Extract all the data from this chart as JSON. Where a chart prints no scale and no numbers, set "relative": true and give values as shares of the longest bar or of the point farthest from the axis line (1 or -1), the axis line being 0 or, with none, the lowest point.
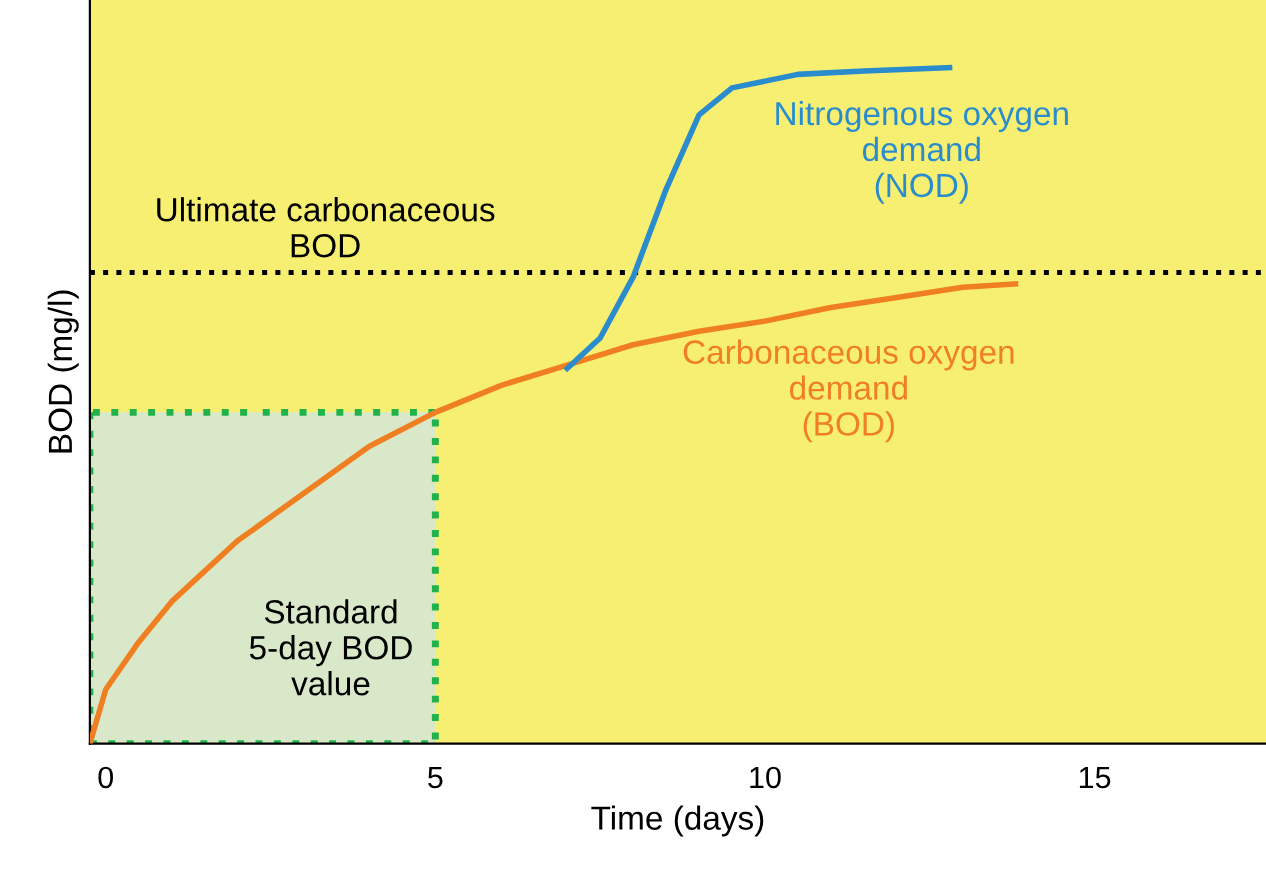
{
  "chart_data": {
    "type": "line",
    "relative": true,
    "xlabel": "Time (days)",
    "ylabel": "BOD (mg/l)",
    "xlim": [
      -0.24,
      17.6
    ],
    "xticks": [
      0,
      5,
      10,
      15
    ],
    "grid": false,
    "legend": false,
    "series": [
      {
        "type": "area",
        "color": "#d9e8c8",
        "line_style": "dotted",
        "x": [
          -0.24,
          5
        ],
        "values": [
          0.49,
          0.49
        ]
      },
      {
        "name": "Carbonaceous oxygen demand (BOD)",
        "color": "#f07f22",
        "x": [
          -0.24,
          0,
          0.5,
          1,
          2,
          3,
          4,
          5,
          6,
          7,
          8,
          9,
          10,
          11,
          12,
          13,
          13.8
        ],
        "values": [
          0,
          0.08,
          0.15,
          0.21,
          0.3,
          0.37,
          0.44,
          0.49,
          0.53,
          0.56,
          0.59,
          0.61,
          0.625,
          0.645,
          0.66,
          0.675,
          0.68
        ]
      },
      {
        "name": "Nitrogenous oxygen demand (NOD)",
        "color": "#2a8ccc",
        "x": [
          7,
          7.5,
          8,
          8.5,
          9,
          9.5,
          10.5,
          11.5,
          12.8
        ],
        "values": [
          0.555,
          0.6,
          0.69,
          0.82,
          0.93,
          0.97,
          0.99,
          0.995,
          1.0
        ]
      }
    ],
    "ref_lines": [
      {
        "axis": "y",
        "value": 0.697,
        "label": "Ultimate carbonaceous\nBOD",
        "color": "#000000",
        "line_style": "dotted"
      }
    ],
    "annotations": [
      "Standard\n5-day BOD\nvalue"
    ]
  }
}
